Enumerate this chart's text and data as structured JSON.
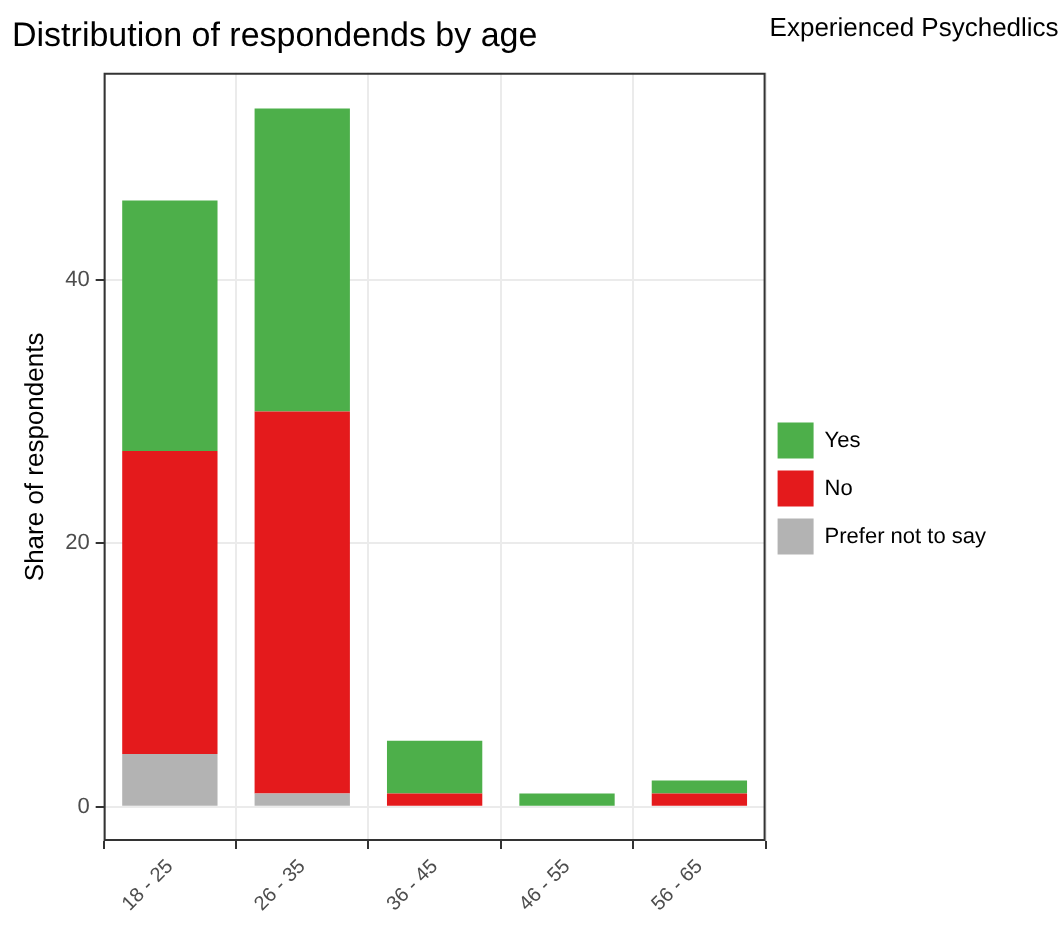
{
  "chart_data": {
    "type": "bar",
    "title": "Distribution of respondends by age",
    "ylabel": "Share of respondents",
    "legend_title": "Experienced Psychedlics",
    "categories": [
      "18 - 25",
      "26 - 35",
      "36 - 45",
      "46 - 55",
      "56 - 65"
    ],
    "stacked": true,
    "series": [
      {
        "name": "Prefer not to say",
        "color": "#b3b3b3",
        "values": [
          4,
          1,
          0,
          0,
          0
        ]
      },
      {
        "name": "No",
        "color": "#e41a1c",
        "values": [
          23,
          29,
          1,
          0,
          1
        ]
      },
      {
        "name": "Yes",
        "color": "#4daf4a",
        "values": [
          19,
          23,
          4,
          1,
          1
        ]
      }
    ],
    "ylim": [
      -2.6,
      55.7
    ],
    "yticks": [
      0,
      20,
      40
    ],
    "grid": true,
    "legend": "right"
  }
}
